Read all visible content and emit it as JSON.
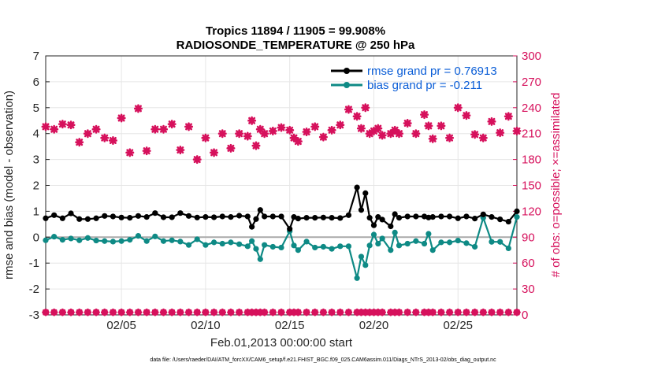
{
  "chart_data": {
    "type": "line",
    "title": "Tropics 11894 / 11905 = 99.908%",
    "subtitle": "RADIOSONDE_TEMPERATURE @ 250 hPa",
    "xlabel": "Feb.01,2013 00:00:00 start",
    "ylabel": "rmse and bias (model - observation)",
    "y2label": "# of obs: o=possible; ×=assimilated",
    "footnote": "data file: /Users/raeder/DAI/ATM_forcXX/CAM6_setup/f.e21.FHIST_BGC.f09_025.CAM6assim.011/Diags_NTrS_2013-02/obs_diag_output.nc",
    "xlim": [
      0.5,
      28.5
    ],
    "ylim": [
      -3,
      7
    ],
    "y2lim": [
      0,
      300
    ],
    "x_ticks": [
      {
        "x": 5,
        "label": "02/05"
      },
      {
        "x": 10,
        "label": "02/10"
      },
      {
        "x": 15,
        "label": "02/15"
      },
      {
        "x": 20,
        "label": "02/20"
      },
      {
        "x": 25,
        "label": "02/25"
      }
    ],
    "y_ticks": [
      "-3",
      "-2",
      "-1",
      "0",
      "1",
      "2",
      "3",
      "4",
      "5",
      "6",
      "7"
    ],
    "y2_ticks": [
      "0",
      "30",
      "60",
      "90",
      "120",
      "150",
      "180",
      "210",
      "240",
      "270",
      "300"
    ],
    "grid": true,
    "legend_position": "top-right",
    "colors": {
      "rmse": "#000000",
      "bias": "#0e8a85",
      "obs": "#d6115c",
      "zero_line": "#aaaaaa",
      "legend_text": "#0b5ed7"
    },
    "x": [
      0.5,
      1.0,
      1.5,
      2.0,
      2.5,
      3.0,
      3.5,
      4.0,
      4.5,
      5.0,
      5.5,
      6.0,
      6.5,
      7.0,
      7.5,
      8.0,
      8.5,
      9.0,
      9.5,
      10.0,
      10.5,
      11.0,
      11.5,
      12.0,
      12.5,
      12.75,
      13.0,
      13.25,
      13.5,
      14.0,
      14.5,
      15.0,
      15.25,
      15.5,
      16.0,
      16.5,
      17.0,
      17.5,
      18.0,
      18.5,
      19.0,
      19.25,
      19.5,
      19.75,
      20.0,
      20.25,
      20.5,
      21.0,
      21.25,
      21.5,
      22.0,
      22.5,
      23.0,
      23.25,
      23.5,
      24.0,
      24.5,
      25.0,
      25.5,
      26.0,
      26.5,
      27.0,
      27.5,
      28.0,
      28.5
    ],
    "series": [
      {
        "name": "rmse grand pr = 0.76913",
        "values": [
          0.73,
          0.85,
          0.73,
          0.92,
          0.7,
          0.7,
          0.73,
          0.82,
          0.8,
          0.76,
          0.75,
          0.82,
          0.78,
          0.93,
          0.77,
          0.77,
          0.93,
          0.82,
          0.76,
          0.78,
          0.77,
          0.8,
          0.78,
          0.83,
          0.8,
          0.4,
          0.7,
          1.05,
          0.8,
          0.8,
          0.8,
          0.32,
          0.78,
          0.72,
          0.75,
          0.75,
          0.76,
          0.75,
          0.74,
          0.85,
          1.92,
          1.05,
          1.7,
          0.75,
          0.46,
          0.78,
          0.68,
          0.42,
          0.89,
          0.75,
          0.8,
          0.8,
          0.8,
          0.76,
          0.78,
          0.8,
          0.8,
          0.73,
          0.8,
          0.72,
          0.88,
          0.78,
          0.69,
          0.6,
          1.0
        ]
      },
      {
        "name": "bias grand pr = -0.211",
        "values": [
          -0.12,
          0.02,
          -0.1,
          -0.05,
          -0.12,
          -0.03,
          -0.13,
          -0.15,
          -0.17,
          -0.15,
          -0.1,
          0.05,
          -0.15,
          0.03,
          -0.15,
          -0.12,
          -0.17,
          -0.3,
          -0.08,
          -0.3,
          -0.2,
          -0.25,
          -0.2,
          -0.27,
          -0.35,
          -0.15,
          -0.45,
          -0.85,
          -0.3,
          -0.37,
          -0.4,
          0.23,
          -0.32,
          -0.5,
          -0.17,
          -0.4,
          -0.37,
          -0.45,
          -0.35,
          -0.35,
          -1.58,
          -0.75,
          -1.08,
          -0.32,
          0.1,
          -0.25,
          -0.05,
          -0.5,
          0.18,
          -0.32,
          -0.25,
          -0.15,
          -0.25,
          0.13,
          -0.5,
          -0.2,
          -0.2,
          -0.13,
          -0.23,
          -0.37,
          0.75,
          -0.18,
          -0.18,
          -0.43,
          0.78
        ]
      },
      {
        "name": "possible",
        "axis": "right",
        "values": [
          3,
          3,
          3,
          3,
          3,
          3,
          3,
          3,
          3,
          3,
          3,
          3,
          3,
          3,
          3,
          3,
          3,
          3,
          3,
          3,
          3,
          3,
          3,
          3,
          3,
          3,
          3,
          3,
          3,
          3,
          3,
          3,
          3,
          3,
          3,
          3,
          3,
          3,
          3,
          3,
          3,
          3,
          3,
          3,
          3,
          3,
          3,
          3,
          3,
          3,
          3,
          3,
          3,
          3,
          3,
          3,
          3,
          3,
          3,
          3,
          3,
          3,
          3,
          3,
          3
        ]
      },
      {
        "name": "assimilated",
        "axis": "right",
        "values": [
          218,
          215,
          221,
          220,
          200,
          210,
          215,
          205,
          202,
          228,
          188,
          239,
          190,
          215,
          215,
          221,
          191,
          218,
          180,
          205,
          188,
          210,
          193,
          210,
          207,
          225,
          196,
          215,
          210,
          213,
          217,
          214,
          205,
          201,
          212,
          218,
          206,
          214,
          220,
          238,
          230,
          216,
          240,
          210,
          213,
          216,
          208,
          210,
          214,
          210,
          222,
          210,
          232,
          219,
          204,
          219,
          205,
          240,
          231,
          209,
          205,
          224,
          211,
          230,
          213
        ]
      }
    ]
  }
}
